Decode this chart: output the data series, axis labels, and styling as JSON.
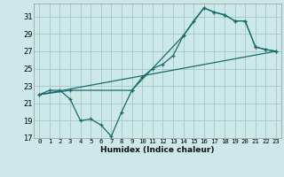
{
  "xlabel": "Humidex (Indice chaleur)",
  "bg_color": "#cce8e8",
  "grid_color": "#aacccc",
  "line_color": "#1a6b6b",
  "xlim": [
    -0.5,
    23.5
  ],
  "ylim": [
    17,
    32.5
  ],
  "yticks": [
    17,
    19,
    21,
    23,
    25,
    27,
    29,
    31
  ],
  "xticks": [
    0,
    1,
    2,
    3,
    4,
    5,
    6,
    7,
    8,
    9,
    10,
    11,
    12,
    13,
    14,
    15,
    16,
    17,
    18,
    19,
    20,
    21,
    22,
    23
  ],
  "line1_x": [
    0,
    1,
    2,
    3,
    4,
    5,
    6,
    7,
    8,
    9,
    10,
    11,
    12,
    13,
    14,
    15,
    16,
    17,
    18,
    19,
    20,
    21,
    22,
    23
  ],
  "line1_y": [
    22.0,
    22.5,
    22.5,
    21.5,
    19.0,
    19.2,
    18.5,
    17.2,
    20.0,
    22.5,
    24.0,
    25.0,
    25.5,
    26.5,
    28.8,
    30.5,
    32.0,
    31.5,
    31.2,
    30.5,
    30.5,
    27.5,
    27.2,
    27.0
  ],
  "line2_x": [
    0,
    3,
    9,
    14,
    16,
    17,
    18,
    19,
    20,
    21,
    22,
    23
  ],
  "line2_y": [
    22.0,
    22.5,
    22.5,
    28.8,
    32.0,
    31.5,
    31.2,
    30.5,
    30.5,
    27.5,
    27.2,
    27.0
  ],
  "line3_x": [
    0,
    23
  ],
  "line3_y": [
    22.0,
    27.0
  ]
}
